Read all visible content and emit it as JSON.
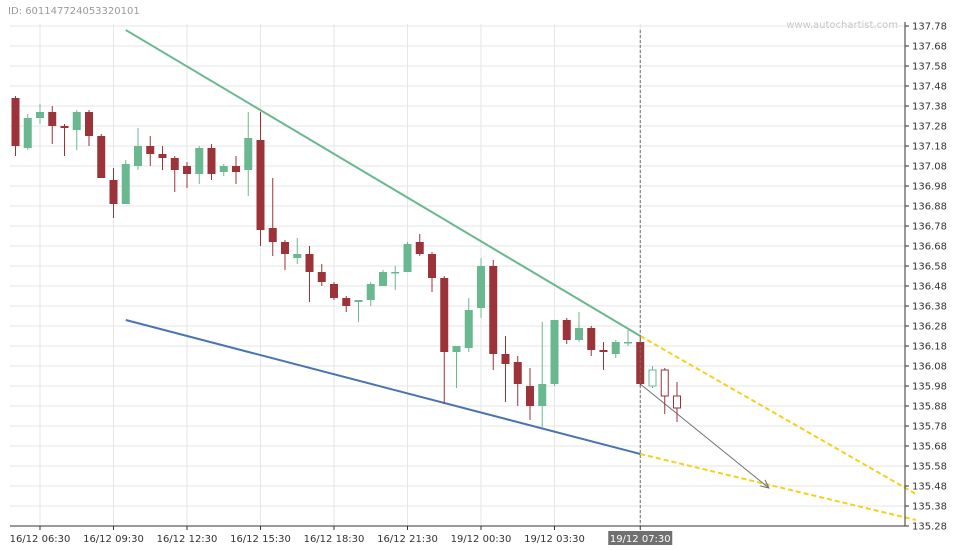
{
  "header": {
    "id_text": "ID: 6011477240533201​01"
  },
  "watermark": "www.autochartist.com",
  "chart_data": {
    "type": "candlestick",
    "title": "",
    "xlabel": "",
    "ylabel": "",
    "ylim": [
      135.28,
      137.78
    ],
    "y_ticks": [
      137.78,
      137.68,
      137.58,
      137.48,
      137.38,
      137.28,
      137.18,
      137.08,
      136.98,
      136.88,
      136.78,
      136.68,
      136.58,
      136.48,
      136.38,
      136.28,
      136.18,
      136.08,
      135.98,
      135.88,
      135.78,
      135.68,
      135.58,
      135.48,
      135.38,
      135.28
    ],
    "x_ticks": [
      {
        "label": "16/12 06:30",
        "index": 2
      },
      {
        "label": "16/12 09:30",
        "index": 8
      },
      {
        "label": "16/12 12:30",
        "index": 14
      },
      {
        "label": "16/12 15:30",
        "index": 20
      },
      {
        "label": "16/12 18:30",
        "index": 26
      },
      {
        "label": "16/12 21:30",
        "index": 32
      },
      {
        "label": "19/12 00:30",
        "index": 38
      },
      {
        "label": "19/12 03:30",
        "index": 44
      },
      {
        "label": "19/12 07:30",
        "index": 51
      }
    ],
    "highlight_label": "19/12 07:30",
    "highlight_index": 51,
    "grid": true,
    "candles": [
      {
        "o": 137.42,
        "h": 137.43,
        "l": 137.13,
        "c": 137.18
      },
      {
        "o": 137.17,
        "h": 137.34,
        "l": 137.16,
        "c": 137.32
      },
      {
        "o": 137.32,
        "h": 137.39,
        "l": 137.29,
        "c": 137.35
      },
      {
        "o": 137.35,
        "h": 137.38,
        "l": 137.19,
        "c": 137.28
      },
      {
        "o": 137.28,
        "h": 137.29,
        "l": 137.13,
        "c": 137.27
      },
      {
        "o": 137.26,
        "h": 137.36,
        "l": 137.16,
        "c": 137.35
      },
      {
        "o": 137.35,
        "h": 137.36,
        "l": 137.18,
        "c": 137.23
      },
      {
        "o": 137.23,
        "h": 137.24,
        "l": 137.02,
        "c": 137.02
      },
      {
        "o": 137.01,
        "h": 137.07,
        "l": 136.82,
        "c": 136.89
      },
      {
        "o": 136.89,
        "h": 137.11,
        "l": 136.89,
        "c": 137.09
      },
      {
        "o": 137.08,
        "h": 137.27,
        "l": 137.06,
        "c": 137.18
      },
      {
        "o": 137.18,
        "h": 137.23,
        "l": 137.08,
        "c": 137.14
      },
      {
        "o": 137.14,
        "h": 137.18,
        "l": 137.06,
        "c": 137.12
      },
      {
        "o": 137.12,
        "h": 137.13,
        "l": 136.95,
        "c": 137.06
      },
      {
        "o": 137.08,
        "h": 137.1,
        "l": 136.97,
        "c": 137.04
      },
      {
        "o": 137.04,
        "h": 137.18,
        "l": 136.99,
        "c": 137.17
      },
      {
        "o": 137.17,
        "h": 137.19,
        "l": 137.01,
        "c": 137.04
      },
      {
        "o": 137.05,
        "h": 137.09,
        "l": 137.03,
        "c": 137.08
      },
      {
        "o": 137.08,
        "h": 137.13,
        "l": 136.99,
        "c": 137.05
      },
      {
        "o": 137.06,
        "h": 137.35,
        "l": 136.93,
        "c": 137.22
      },
      {
        "o": 137.21,
        "h": 137.35,
        "l": 136.68,
        "c": 136.76
      },
      {
        "o": 136.77,
        "h": 137.02,
        "l": 136.63,
        "c": 136.7
      },
      {
        "o": 136.7,
        "h": 136.71,
        "l": 136.56,
        "c": 136.64
      },
      {
        "o": 136.62,
        "h": 136.72,
        "l": 136.59,
        "c": 136.64
      },
      {
        "o": 136.64,
        "h": 136.68,
        "l": 136.4,
        "c": 136.55
      },
      {
        "o": 136.55,
        "h": 136.59,
        "l": 136.48,
        "c": 136.5
      },
      {
        "o": 136.49,
        "h": 136.5,
        "l": 136.41,
        "c": 136.42
      },
      {
        "o": 136.42,
        "h": 136.43,
        "l": 136.35,
        "c": 136.38
      },
      {
        "o": 136.4,
        "h": 136.41,
        "l": 136.3,
        "c": 136.41
      },
      {
        "o": 136.41,
        "h": 136.5,
        "l": 136.38,
        "c": 136.49
      },
      {
        "o": 136.48,
        "h": 136.56,
        "l": 136.48,
        "c": 136.55
      },
      {
        "o": 136.55,
        "h": 136.58,
        "l": 136.46,
        "c": 136.55
      },
      {
        "o": 136.55,
        "h": 136.7,
        "l": 136.55,
        "c": 136.69
      },
      {
        "o": 136.7,
        "h": 136.74,
        "l": 136.63,
        "c": 136.64
      },
      {
        "o": 136.64,
        "h": 136.65,
        "l": 136.45,
        "c": 136.52
      },
      {
        "o": 136.52,
        "h": 136.53,
        "l": 135.89,
        "c": 136.15
      },
      {
        "o": 136.15,
        "h": 136.18,
        "l": 135.97,
        "c": 136.18
      },
      {
        "o": 136.17,
        "h": 136.42,
        "l": 136.15,
        "c": 136.36
      },
      {
        "o": 136.37,
        "h": 136.62,
        "l": 136.32,
        "c": 136.58
      },
      {
        "o": 136.58,
        "h": 136.61,
        "l": 136.06,
        "c": 136.14
      },
      {
        "o": 136.14,
        "h": 136.23,
        "l": 135.9,
        "c": 136.09
      },
      {
        "o": 136.1,
        "h": 136.13,
        "l": 135.88,
        "c": 135.99
      },
      {
        "o": 135.98,
        "h": 136.07,
        "l": 135.81,
        "c": 135.88
      },
      {
        "o": 135.88,
        "h": 136.3,
        "l": 135.77,
        "c": 135.99
      },
      {
        "o": 135.99,
        "h": 136.31,
        "l": 135.98,
        "c": 136.31
      },
      {
        "o": 136.31,
        "h": 136.32,
        "l": 136.19,
        "c": 136.21
      },
      {
        "o": 136.21,
        "h": 136.35,
        "l": 136.2,
        "c": 136.27
      },
      {
        "o": 136.27,
        "h": 136.28,
        "l": 136.13,
        "c": 136.16
      },
      {
        "o": 136.16,
        "h": 136.2,
        "l": 136.06,
        "c": 136.15
      },
      {
        "o": 136.14,
        "h": 136.21,
        "l": 136.12,
        "c": 136.2
      },
      {
        "o": 136.2,
        "h": 136.26,
        "l": 136.18,
        "c": 136.2
      },
      {
        "o": 136.2,
        "h": 136.22,
        "l": 135.98,
        "c": 135.99
      }
    ],
    "projected_candles": [
      {
        "o": 135.98,
        "h": 136.08,
        "l": 135.97,
        "c": 136.06
      },
      {
        "o": 136.06,
        "h": 136.07,
        "l": 135.84,
        "c": 135.93
      },
      {
        "o": 135.93,
        "h": 136.0,
        "l": 135.8,
        "c": 135.87
      }
    ],
    "trend_lines": [
      {
        "name": "resistance",
        "color": "#6ab890",
        "from": {
          "index": 9,
          "price": 137.76
        },
        "to": {
          "index": 51,
          "price": 136.23
        }
      },
      {
        "name": "support",
        "color": "#4a74b0",
        "from": {
          "index": 9,
          "price": 136.31
        },
        "to": {
          "index": 51,
          "price": 135.64
        }
      }
    ],
    "projection_lines": [
      {
        "color": "#f5d11a",
        "from": {
          "index": 51,
          "price": 136.23
        },
        "to": {
          "index": 73.5,
          "price": 135.44
        }
      },
      {
        "color": "#f5d11a",
        "from": {
          "index": 51,
          "price": 135.64
        },
        "to": {
          "index": 73.5,
          "price": 135.31
        }
      }
    ],
    "forecast_arrow": {
      "color": "#707070",
      "from": {
        "index": 51,
        "price": 135.99
      },
      "to": {
        "index": 61.5,
        "price": 135.47
      }
    },
    "colors": {
      "up": "#6ab890",
      "down": "#9b3338",
      "grid": "#e6e6e6",
      "axis": "#333333",
      "highlight_bg": "#707070"
    }
  }
}
